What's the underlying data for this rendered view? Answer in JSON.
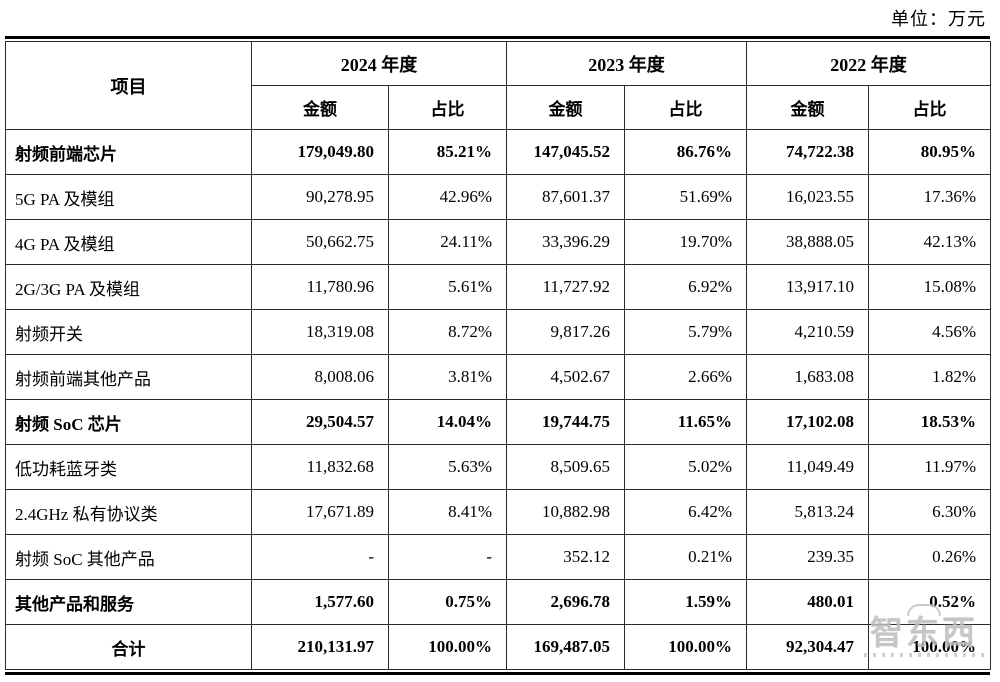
{
  "unit_label": "单位：万元",
  "table": {
    "item_header": "项目",
    "year_headers": [
      "2024 年度",
      "2023 年度",
      "2022 年度"
    ],
    "sub_headers": {
      "amount": "金额",
      "ratio": "占比"
    },
    "rows": [
      {
        "item": "射频前端芯片",
        "values": [
          "179,049.80",
          "85.21%",
          "147,045.52",
          "86.76%",
          "74,722.38",
          "80.95%"
        ]
      },
      {
        "item": "5G PA 及模组",
        "values": [
          "90,278.95",
          "42.96%",
          "87,601.37",
          "51.69%",
          "16,023.55",
          "17.36%"
        ]
      },
      {
        "item": "4G PA 及模组",
        "values": [
          "50,662.75",
          "24.11%",
          "33,396.29",
          "19.70%",
          "38,888.05",
          "42.13%"
        ]
      },
      {
        "item": "2G/3G PA 及模组",
        "values": [
          "11,780.96",
          "5.61%",
          "11,727.92",
          "6.92%",
          "13,917.10",
          "15.08%"
        ]
      },
      {
        "item": "射频开关",
        "values": [
          "18,319.08",
          "8.72%",
          "9,817.26",
          "5.79%",
          "4,210.59",
          "4.56%"
        ]
      },
      {
        "item": "射频前端其他产品",
        "values": [
          "8,008.06",
          "3.81%",
          "4,502.67",
          "2.66%",
          "1,683.08",
          "1.82%"
        ]
      },
      {
        "item": "射频 SoC 芯片",
        "values": [
          "29,504.57",
          "14.04%",
          "19,744.75",
          "11.65%",
          "17,102.08",
          "18.53%"
        ]
      },
      {
        "item": "低功耗蓝牙类",
        "values": [
          "11,832.68",
          "5.63%",
          "8,509.65",
          "5.02%",
          "11,049.49",
          "11.97%"
        ]
      },
      {
        "item": "2.4GHz 私有协议类",
        "values": [
          "17,671.89",
          "8.41%",
          "10,882.98",
          "6.42%",
          "5,813.24",
          "6.30%"
        ]
      },
      {
        "item": "射频 SoC 其他产品",
        "values": [
          "-",
          "-",
          "352.12",
          "0.21%",
          "239.35",
          "0.26%"
        ]
      },
      {
        "item": "其他产品和服务",
        "values": [
          "1,577.60",
          "0.75%",
          "2,696.78",
          "1.59%",
          "480.01",
          "0.52%"
        ]
      },
      {
        "item": "合计",
        "values": [
          "210,131.97",
          "100.00%",
          "169,487.05",
          "100.00%",
          "92,304.47",
          "100.00%"
        ]
      }
    ]
  },
  "watermark": {
    "text": "智东西"
  }
}
